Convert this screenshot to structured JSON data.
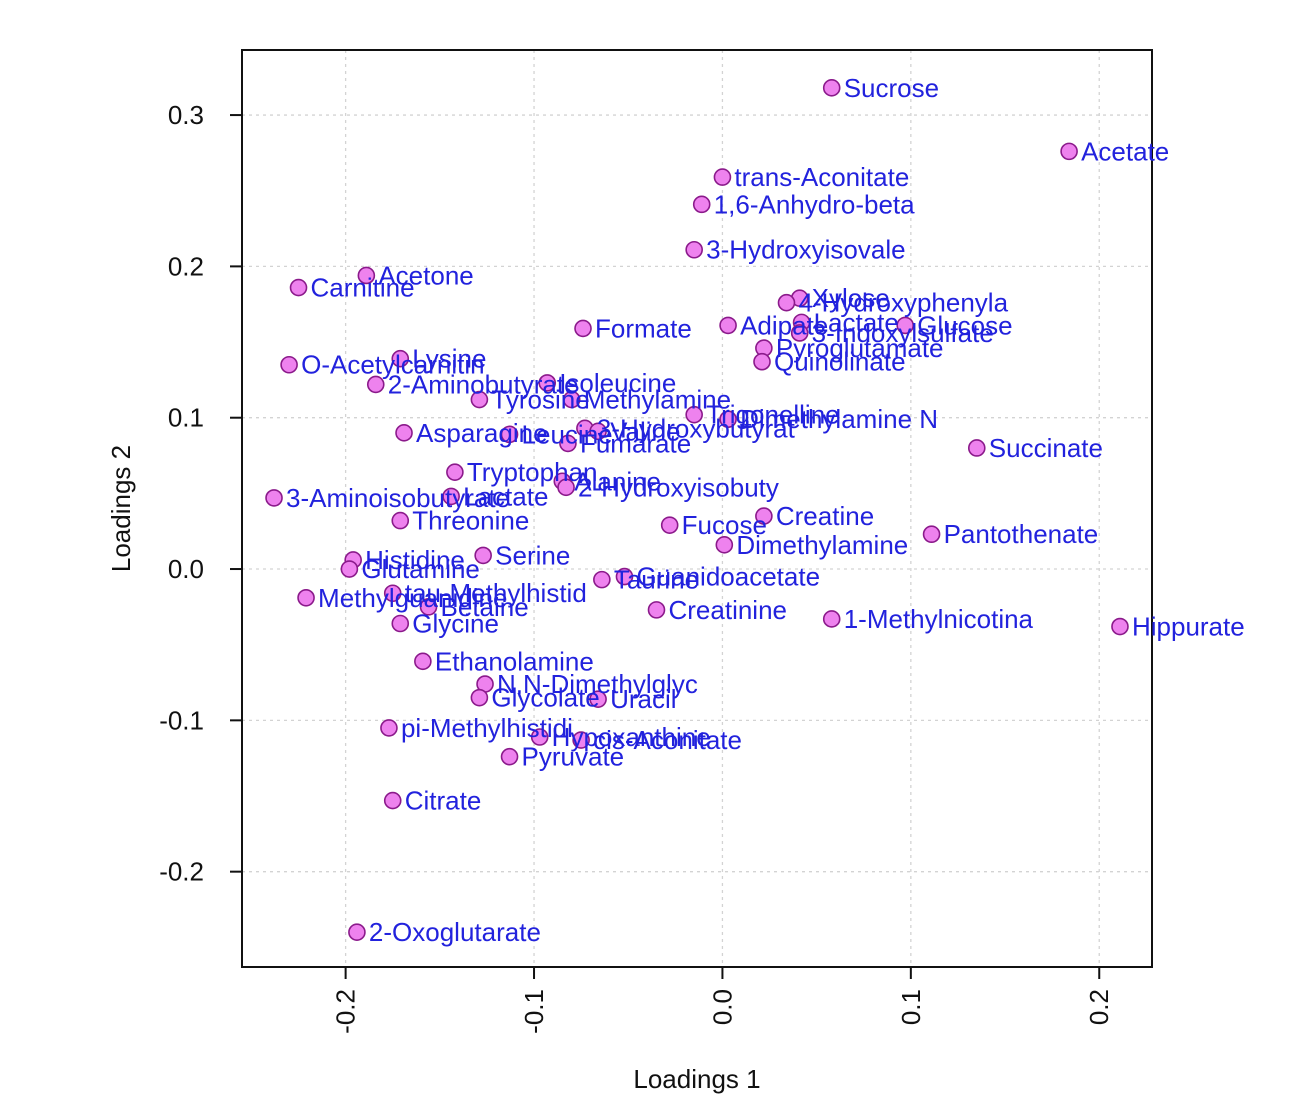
{
  "chart_data": {
    "type": "scatter",
    "xlabel": "Loadings 1",
    "ylabel": "Loadings 2",
    "xlim": [
      -0.255,
      0.228
    ],
    "ylim": [
      -0.263,
      0.343
    ],
    "x_ticks": [
      "-0.2",
      "-0.1",
      "0.0",
      "0.1",
      "0.2"
    ],
    "y_ticks": [
      "-0.2",
      "-0.1",
      "0.0",
      "0.1",
      "0.2",
      "0.3"
    ],
    "x_tick_values": [
      -0.2,
      -0.1,
      0.0,
      0.1,
      0.2
    ],
    "y_tick_values": [
      -0.2,
      -0.1,
      0.0,
      0.1,
      0.2,
      0.3
    ],
    "grid": true,
    "colors": {
      "point_fill": "#ee82ee",
      "point_stroke": "#8b1a8b",
      "label": "#2222dd",
      "axis": "#111111",
      "grid": "#d3d3d3"
    },
    "points": [
      {
        "label": "Sucrose",
        "x": 0.058,
        "y": 0.318
      },
      {
        "label": "Acetate",
        "x": 0.184,
        "y": 0.276
      },
      {
        "label": "trans-Aconitate",
        "x": 0.0,
        "y": 0.259
      },
      {
        "label": "1,6-Anhydro-beta",
        "x": -0.011,
        "y": 0.241
      },
      {
        "label": "3-Hydroxyisovale",
        "x": -0.015,
        "y": 0.211
      },
      {
        "label": "Acetone",
        "x": -0.189,
        "y": 0.194
      },
      {
        "label": "Carnitine",
        "x": -0.225,
        "y": 0.186
      },
      {
        "label": "Xylose",
        "x": 0.041,
        "y": 0.179
      },
      {
        "label": "4-Hydroxyphenyla",
        "x": 0.034,
        "y": 0.176
      },
      {
        "label": "Formate",
        "x": -0.074,
        "y": 0.159
      },
      {
        "label": "Adipate",
        "x": 0.003,
        "y": 0.161
      },
      {
        "label": "Lactate",
        "x": 0.042,
        "y": 0.163
      },
      {
        "label": "Glucose",
        "x": 0.097,
        "y": 0.161
      },
      {
        "label": "3-Indoxylsulfate",
        "x": 0.041,
        "y": 0.156
      },
      {
        "label": "Pyroglutamate",
        "x": 0.022,
        "y": 0.146
      },
      {
        "label": "Quinolinate",
        "x": 0.021,
        "y": 0.137
      },
      {
        "label": "O-Acetylcarnitin",
        "x": -0.23,
        "y": 0.135
      },
      {
        "label": "Lysine",
        "x": -0.171,
        "y": 0.139
      },
      {
        "label": "2-Aminobutyrate",
        "x": -0.184,
        "y": 0.122
      },
      {
        "label": "Isoleucine",
        "x": -0.093,
        "y": 0.123
      },
      {
        "label": "Tyrosine",
        "x": -0.129,
        "y": 0.112
      },
      {
        "label": "Methylamine",
        "x": -0.08,
        "y": 0.112
      },
      {
        "label": "Trigonelline",
        "x": -0.015,
        "y": 0.102
      },
      {
        "label": "Dimethylamine N",
        "x": 0.003,
        "y": 0.099
      },
      {
        "label": "3-Hydroxybutyrat",
        "x": -0.073,
        "y": 0.093
      },
      {
        "label": "Valine",
        "x": -0.066,
        "y": 0.091
      },
      {
        "label": "Asparagine",
        "x": -0.169,
        "y": 0.09
      },
      {
        "label": "Leucine",
        "x": -0.113,
        "y": 0.089
      },
      {
        "label": "Fumarate",
        "x": -0.082,
        "y": 0.083
      },
      {
        "label": "Succinate",
        "x": 0.135,
        "y": 0.08
      },
      {
        "label": "Tryptophan",
        "x": -0.142,
        "y": 0.064
      },
      {
        "label": "Alanine",
        "x": -0.085,
        "y": 0.058
      },
      {
        "label": "2-Hydroxyisobuty",
        "x": -0.083,
        "y": 0.054
      },
      {
        "label": "3-Aminoisobutyrate",
        "x": -0.238,
        "y": 0.047
      },
      {
        "label": "Lactate",
        "x": -0.144,
        "y": 0.048
      },
      {
        "label": "Threonine",
        "x": -0.171,
        "y": 0.032
      },
      {
        "label": "Fucose",
        "x": -0.028,
        "y": 0.029
      },
      {
        "label": "Creatine",
        "x": 0.022,
        "y": 0.035
      },
      {
        "label": "Pantothenate",
        "x": 0.111,
        "y": 0.023
      },
      {
        "label": "Dimethylamine",
        "x": 0.001,
        "y": 0.016
      },
      {
        "label": "Histidine",
        "x": -0.196,
        "y": 0.006
      },
      {
        "label": "Serine",
        "x": -0.127,
        "y": 0.009
      },
      {
        "label": "Glutamine",
        "x": -0.198,
        "y": 0.0
      },
      {
        "label": "Guanidoacetate",
        "x": -0.052,
        "y": -0.005
      },
      {
        "label": "Taurine",
        "x": -0.064,
        "y": -0.007
      },
      {
        "label": "tau-Methylhistid",
        "x": -0.175,
        "y": -0.016
      },
      {
        "label": "Methylguanidine",
        "x": -0.221,
        "y": -0.019
      },
      {
        "label": "Betaine",
        "x": -0.156,
        "y": -0.025
      },
      {
        "label": "Creatinine",
        "x": -0.035,
        "y": -0.027
      },
      {
        "label": "1-Methylnicotina",
        "x": 0.058,
        "y": -0.033
      },
      {
        "label": "Hippurate",
        "x": 0.211,
        "y": -0.038
      },
      {
        "label": "Glycine",
        "x": -0.171,
        "y": -0.036
      },
      {
        "label": "Ethanolamine",
        "x": -0.159,
        "y": -0.061
      },
      {
        "label": "N,N-Dimethylglyc",
        "x": -0.126,
        "y": -0.076
      },
      {
        "label": "Glycolate",
        "x": -0.129,
        "y": -0.085
      },
      {
        "label": "Uracil",
        "x": -0.066,
        "y": -0.086
      },
      {
        "label": "pi-Methylhistidi",
        "x": -0.177,
        "y": -0.105
      },
      {
        "label": "Hypoxanthine",
        "x": -0.097,
        "y": -0.111
      },
      {
        "label": "cis-Aconitate",
        "x": -0.075,
        "y": -0.113
      },
      {
        "label": "Pyruvate",
        "x": -0.113,
        "y": -0.124
      },
      {
        "label": "Citrate",
        "x": -0.175,
        "y": -0.153
      },
      {
        "label": "2-Oxoglutarate",
        "x": -0.194,
        "y": -0.24
      }
    ]
  }
}
